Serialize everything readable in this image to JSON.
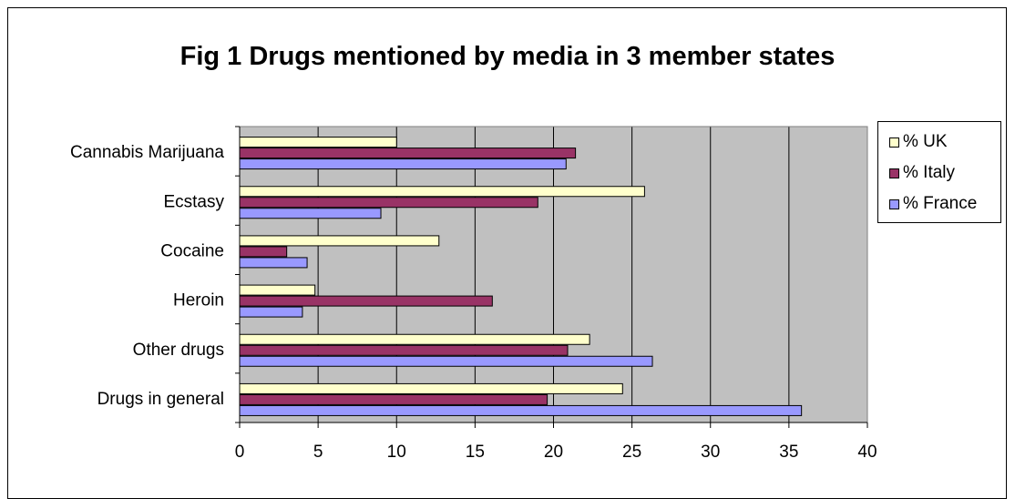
{
  "chart_data": {
    "type": "bar",
    "orientation": "horizontal",
    "title": "Fig 1 Drugs mentioned by media in 3 member states",
    "xlabel": "",
    "ylabel": "",
    "categories": [
      "Cannabis Marijuana",
      "Ecstasy",
      "Cocaine",
      "Heroin",
      "Other drugs",
      "Drugs in general"
    ],
    "series": [
      {
        "name": "% UK",
        "color": "#ffffcc",
        "values": [
          10,
          25.8,
          12.7,
          4.8,
          22.3,
          24.4
        ]
      },
      {
        "name": "% Italy",
        "color": "#993366",
        "values": [
          21.4,
          19,
          3,
          16.1,
          20.9,
          19.6
        ]
      },
      {
        "name": "% France",
        "color": "#9999ff",
        "values": [
          20.8,
          9,
          4.3,
          4,
          26.3,
          35.8
        ]
      }
    ],
    "xlim": [
      0,
      40
    ],
    "xticks": [
      0,
      5,
      10,
      15,
      20,
      25,
      30,
      35,
      40
    ],
    "grid": true,
    "plot_background": "#c0c0c0",
    "legend_position": "right"
  }
}
